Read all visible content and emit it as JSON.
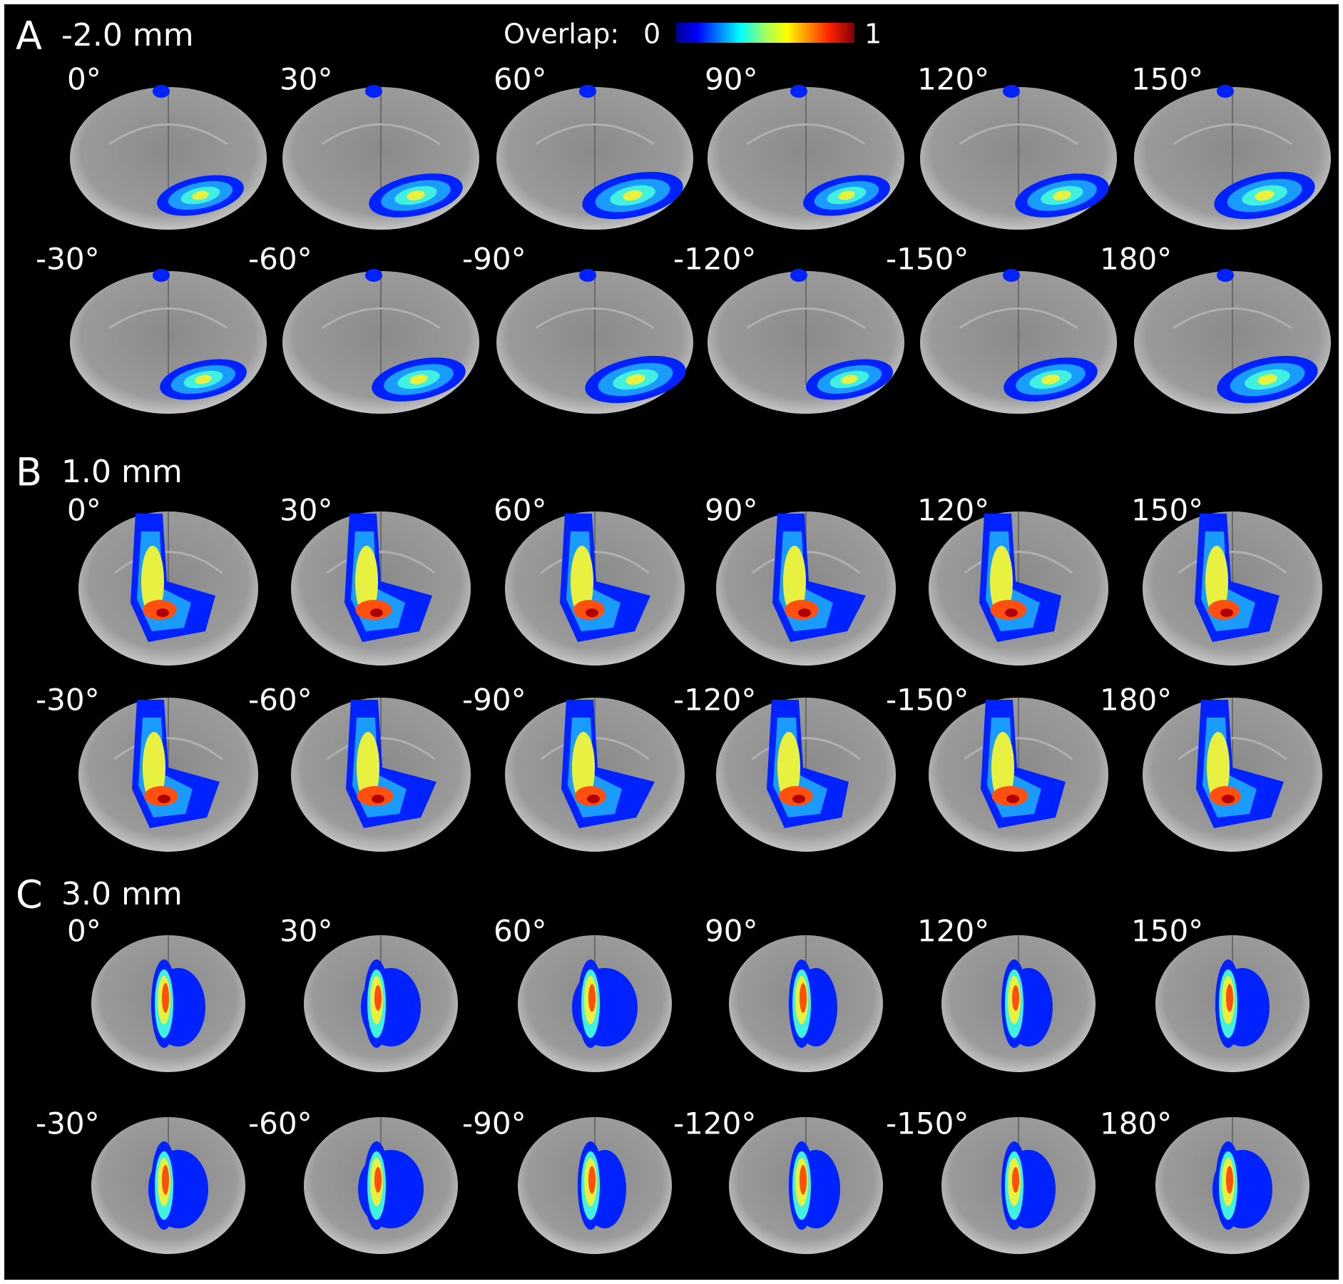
{
  "colorbar": {
    "label": "Overlap:",
    "min": 0,
    "max": 1
  },
  "panels": [
    {
      "letter": "A",
      "depth": "-2.0 mm",
      "angles": [
        "0°",
        "30°",
        "60°",
        "90°",
        "120°",
        "150°",
        "-30°",
        "-60°",
        "-90°",
        "-120°",
        "-150°",
        "180°"
      ]
    },
    {
      "letter": "B",
      "depth": "1.0 mm",
      "angles": [
        "0°",
        "30°",
        "60°",
        "90°",
        "120°",
        "150°",
        "-30°",
        "-60°",
        "-90°",
        "-120°",
        "-150°",
        "180°"
      ]
    },
    {
      "letter": "C",
      "depth": "3.0 mm",
      "angles": [
        "0°",
        "30°",
        "60°",
        "90°",
        "120°",
        "150°",
        "-30°",
        "-60°",
        "-90°",
        "-120°",
        "-150°",
        "180°"
      ]
    }
  ]
}
